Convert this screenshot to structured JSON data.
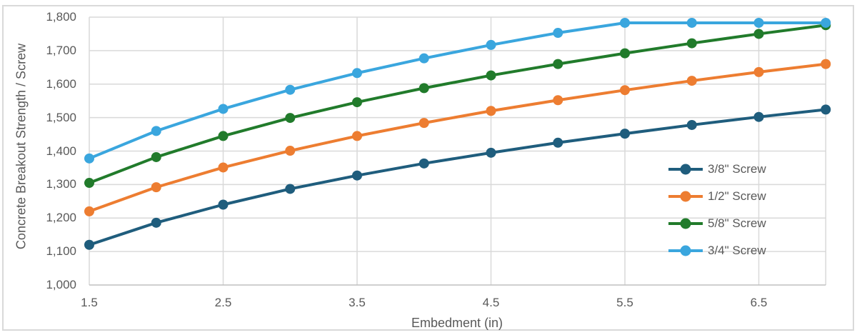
{
  "colors": {
    "background": "#FFFFFF",
    "border": "#D9D9D9",
    "gridline": "#D9D9D9",
    "axis_line": "#BFBFBF",
    "axis_text": "#595959"
  },
  "chart_data": {
    "type": "line",
    "title": "",
    "xlabel": "Embedment (in)",
    "ylabel": "Concrete Breakout Strength / Screw",
    "xlim": [
      1.5,
      7.0
    ],
    "ylim": [
      1000,
      1800
    ],
    "grid": true,
    "legend_position": "middle-right-overlay",
    "x_ticks": [
      1.5,
      2.5,
      3.5,
      4.5,
      5.5,
      6.5
    ],
    "x_tick_labels": [
      "1.5",
      "2.5",
      "3.5",
      "4.5",
      "5.5",
      "6.5"
    ],
    "y_ticks": [
      1000,
      1100,
      1200,
      1300,
      1400,
      1500,
      1600,
      1700,
      1800
    ],
    "y_tick_labels": [
      "1,000",
      "1,100",
      "1,200",
      "1,300",
      "1,400",
      "1,500",
      "1,600",
      "1,700",
      "1,800"
    ],
    "x": [
      1.5,
      2.0,
      2.5,
      3.0,
      3.5,
      4.0,
      4.5,
      5.0,
      5.5,
      6.0,
      6.5,
      7.0
    ],
    "series": [
      {
        "name": "3/8\" Screw",
        "color": "#1F5D7D",
        "values": [
          1120,
          1186,
          1240,
          1287,
          1327,
          1363,
          1395,
          1425,
          1452,
          1478,
          1502,
          1524
        ]
      },
      {
        "name": "1/2\" Screw",
        "color": "#ED7D31",
        "values": [
          1220,
          1292,
          1351,
          1401,
          1445,
          1484,
          1520,
          1552,
          1582,
          1610,
          1636,
          1660
        ]
      },
      {
        "name": "5/8\" Screw",
        "color": "#217B2B",
        "values": [
          1305,
          1382,
          1445,
          1499,
          1546,
          1588,
          1626,
          1660,
          1692,
          1722,
          1750,
          1776
        ]
      },
      {
        "name": "3/4\" Screw",
        "color": "#3AA6DE",
        "values": [
          1378,
          1460,
          1526,
          1583,
          1633,
          1677,
          1717,
          1753,
          1783,
          1783,
          1783,
          1783
        ]
      }
    ]
  }
}
